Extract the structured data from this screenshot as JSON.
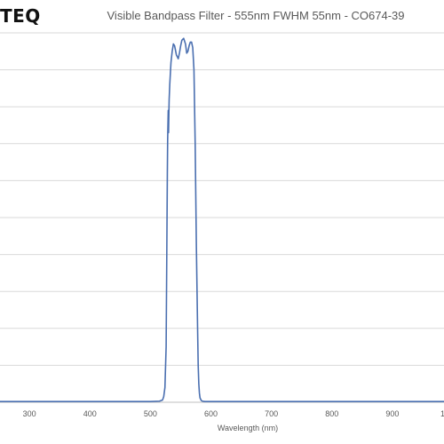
{
  "logo": {
    "text": "TEQ"
  },
  "colors": {
    "series": "#4a6fb0",
    "grid": "#d9d9d9"
  },
  "chart_data": {
    "type": "line",
    "title": "Visible Bandpass Filter - 555nm FWHM 55nm - CO674-39",
    "xlabel": "Wavelength (nm)",
    "ylabel": "",
    "xlim": [
      200,
      1000
    ],
    "ylim": [
      0,
      100
    ],
    "x_ticks": [
      300,
      400,
      500,
      600,
      700,
      800,
      900
    ],
    "x_tick_labels": [
      "300",
      "400",
      "500",
      "600",
      "700",
      "800",
      "900"
    ],
    "right_edge_label": "1",
    "y_gridlines": [
      0,
      10,
      20,
      30,
      40,
      50,
      60,
      70,
      80,
      90,
      100
    ],
    "grid": true,
    "legend": "none",
    "series": [
      {
        "x": [
          200,
          300,
          400,
          500,
          515,
          520,
          522,
          524,
          526,
          527,
          528,
          528.5,
          529,
          529.5,
          530,
          530.5,
          531,
          532,
          534,
          536,
          538,
          540,
          543,
          546,
          548,
          550,
          552,
          555,
          558,
          560,
          562,
          564,
          566,
          568,
          570,
          572,
          574,
          576,
          578,
          579,
          580,
          581,
          582,
          584,
          586,
          590,
          600,
          700,
          800,
          900,
          1000
        ],
        "y": [
          0.2,
          0.2,
          0.2,
          0.2,
          0.3,
          0.6,
          1.5,
          4,
          15,
          38,
          62,
          71,
          75,
          79,
          73,
          78,
          82,
          86,
          92,
          95,
          97,
          96.5,
          94,
          93,
          94.5,
          96.5,
          98,
          98.5,
          97,
          94.5,
          95,
          96.5,
          97.5,
          97.5,
          96,
          90,
          70,
          42,
          20,
          10,
          5,
          2.5,
          1.2,
          0.5,
          0.3,
          0.2,
          0.2,
          0.2,
          0.2,
          0.2,
          0.2
        ]
      }
    ]
  }
}
